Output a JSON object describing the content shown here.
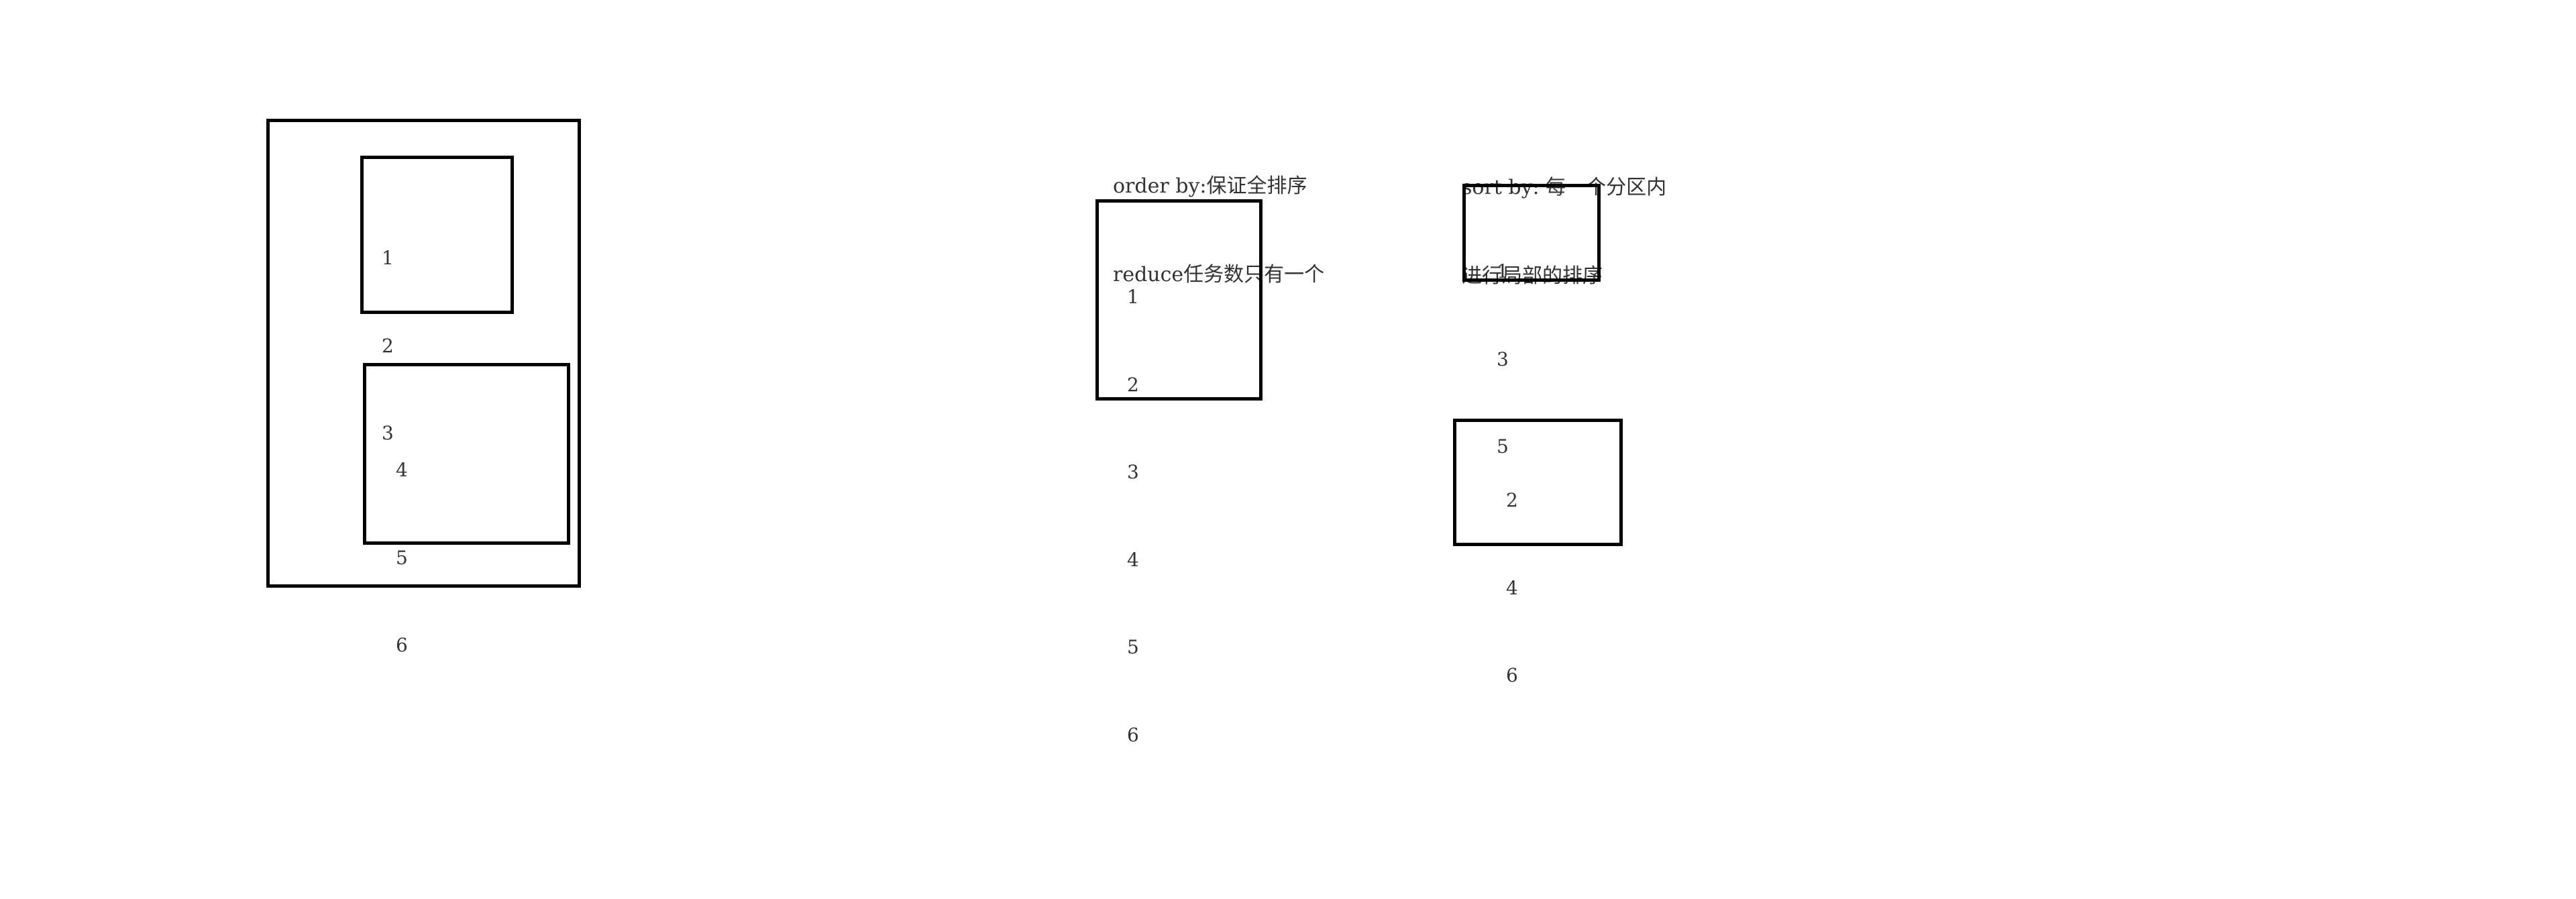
{
  "left_group": {
    "top_box": {
      "items": [
        "1",
        "2",
        "3"
      ]
    },
    "bottom_box": {
      "items": [
        "4",
        "5",
        "6"
      ]
    }
  },
  "order_by": {
    "note_lines": [
      "order by:保证全排序",
      "reduce任务数只有一个"
    ],
    "items": [
      "1",
      "2",
      "3",
      "4",
      "5",
      "6"
    ]
  },
  "sort_by": {
    "note_lines": [
      "sort by: 每一个分区内",
      "进行局部的排序"
    ],
    "partition_a": {
      "items": [
        "1",
        "3",
        "5"
      ]
    },
    "partition_b": {
      "items": [
        "2",
        "4",
        "6"
      ]
    }
  }
}
